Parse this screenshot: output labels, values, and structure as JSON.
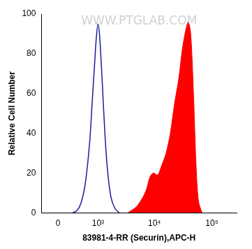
{
  "chart_data": {
    "type": "line",
    "x_label": "83981-4-RR (Securin),APC-H",
    "y_label": "Relative Cell Number",
    "annotations": [
      "WWW.PTGLAB.COM"
    ],
    "xlim": [
      -300,
      270000
    ],
    "xticks": [
      0,
      {
        "value": 1000,
        "label": "10³"
      },
      {
        "value": 10000,
        "label": "10⁴"
      },
      {
        "value": 100000,
        "label": "10⁵"
      }
    ],
    "ylim": [
      0,
      100
    ],
    "yticks": [
      0,
      20,
      40,
      60,
      80,
      100
    ],
    "grid": false,
    "series": [
      {
        "type": "line",
        "color": "#1c1c9c",
        "x": [
          257,
          346,
          445,
          557,
          684,
          769,
          861,
          928,
          1000,
          1078,
          1203,
          1340,
          1490,
          1720,
          2045,
          2430
        ],
        "values": [
          0,
          1,
          5,
          15,
          35,
          55,
          75,
          88,
          95,
          88,
          65,
          40,
          22,
          8,
          2,
          0
        ]
      },
      {
        "type": "area",
        "color": "#ff0000",
        "x": [
          3440,
          4830,
          6340,
          7300,
          8360,
          9580,
          11340,
          13440,
          15960,
          18900,
          22430,
          26670,
          30530,
          35150,
          38850,
          42840,
          47880,
          52920,
          58380,
          67200
        ],
        "values": [
          0,
          3,
          8,
          12,
          18,
          20,
          19,
          24,
          30,
          40,
          55,
          68,
          82,
          92,
          96,
          90,
          60,
          25,
          6,
          0
        ]
      }
    ]
  }
}
